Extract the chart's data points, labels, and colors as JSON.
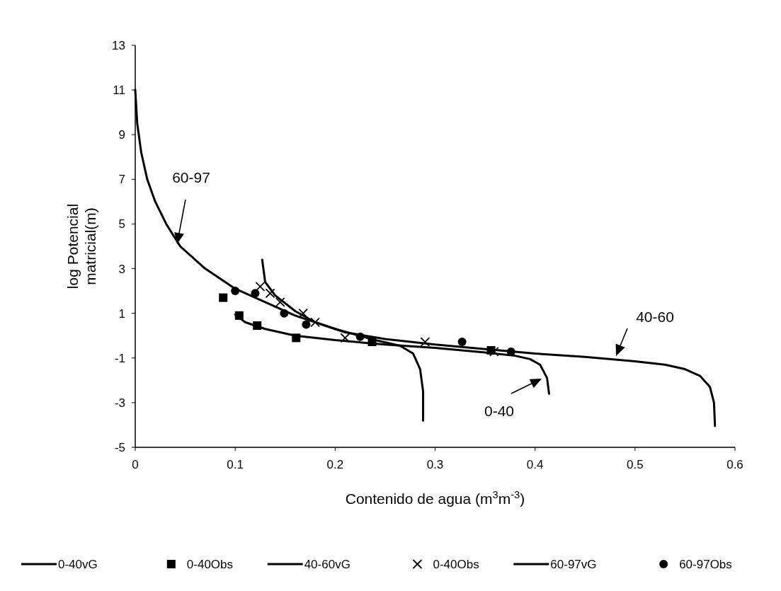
{
  "chart_data": {
    "type": "line",
    "xlabel": "Contenido de agua (m$^{3}$m$^{-3}$)",
    "ylabel": "log Potencial matricial(m)",
    "xlim": [
      0,
      0.6
    ],
    "ylim": [
      -5,
      13
    ],
    "xticks": [
      0,
      0.1,
      0.2,
      0.3,
      0.4,
      0.5,
      0.6
    ],
    "yticks": [
      -5,
      -3,
      -1,
      1,
      3,
      5,
      7,
      9,
      11,
      13
    ],
    "grid": false,
    "legend": "bottom",
    "series": [
      {
        "name": "0-40vG",
        "color": "#000000",
        "marker": "none",
        "x": [
          0.1,
          0.11,
          0.13,
          0.16,
          0.2,
          0.25,
          0.3,
          0.35,
          0.38,
          0.395,
          0.405,
          0.412,
          0.414
        ],
        "values": [
          0.95,
          0.6,
          0.3,
          0.0,
          -0.2,
          -0.4,
          -0.55,
          -0.75,
          -0.9,
          -1.05,
          -1.3,
          -1.9,
          -2.6
        ]
      },
      {
        "name": "0-40Obs",
        "type": "scatter",
        "color": "#000000",
        "marker": "square",
        "x": [
          0.088,
          0.104,
          0.122,
          0.161,
          0.237,
          0.356
        ],
        "values": [
          1.7,
          0.9,
          0.45,
          -0.1,
          -0.28,
          -0.66
        ]
      },
      {
        "name": "40-60vG",
        "color": "#000000",
        "marker": "none",
        "x": [
          0.127,
          0.13,
          0.14,
          0.16,
          0.18,
          0.21,
          0.25,
          0.3,
          0.35,
          0.4,
          0.45,
          0.5,
          0.53,
          0.55,
          0.565,
          0.575,
          0.579,
          0.58
        ],
        "values": [
          3.4,
          2.4,
          1.8,
          1.1,
          0.6,
          0.15,
          -0.15,
          -0.4,
          -0.6,
          -0.8,
          -0.95,
          -1.15,
          -1.3,
          -1.5,
          -1.8,
          -2.3,
          -3.0,
          -4.05
        ]
      },
      {
        "name": "0-40Obs",
        "type": "scatter",
        "color": "#000000",
        "marker": "cross",
        "x": [
          0.125,
          0.135,
          0.145,
          0.168,
          0.18,
          0.21,
          0.29,
          0.359
        ],
        "values": [
          2.2,
          1.9,
          1.5,
          1.0,
          0.6,
          -0.1,
          -0.28,
          -0.72
        ]
      },
      {
        "name": "60-97vG",
        "color": "#000000",
        "marker": "none",
        "x": [
          0,
          0.002,
          0.006,
          0.012,
          0.02,
          0.031,
          0.045,
          0.07,
          0.1,
          0.13,
          0.16,
          0.2,
          0.24,
          0.265,
          0.278,
          0.285,
          0.288,
          0.288
        ],
        "values": [
          11,
          9.5,
          8.2,
          7,
          6,
          5,
          4,
          3,
          2.1,
          1.5,
          0.9,
          0.3,
          -0.2,
          -0.45,
          -0.8,
          -1.5,
          -2.5,
          -3.8
        ]
      },
      {
        "name": "60-97Obs",
        "type": "scatter",
        "color": "#000000",
        "marker": "circle",
        "x": [
          0.1,
          0.12,
          0.149,
          0.171,
          0.225,
          0.327,
          0.376
        ],
        "values": [
          2.0,
          1.9,
          1.0,
          0.5,
          -0.05,
          -0.28,
          -0.72
        ]
      }
    ],
    "annotations": [
      "60-97",
      "40-60",
      "0-40"
    ]
  }
}
